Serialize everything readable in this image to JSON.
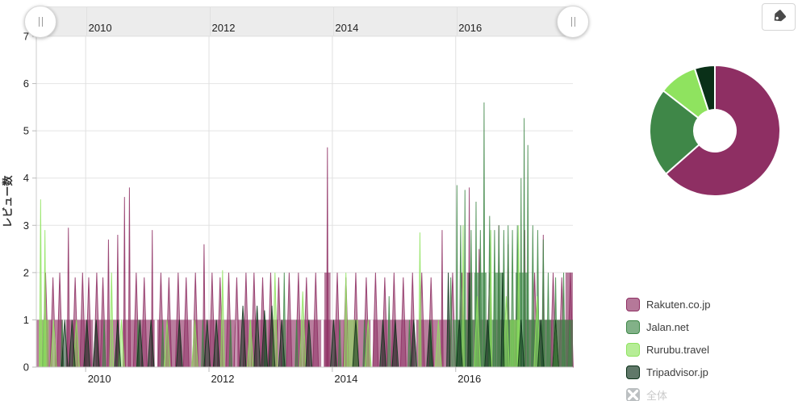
{
  "scrollbar": {
    "grip_glyph": "||"
  },
  "toolbar": {
    "tag_button": "tag-icon"
  },
  "palette": {
    "rakuten": "#8e2f63",
    "jalan": "#3f8748",
    "rurubu": "#8fe35f",
    "tripadvisor": "#0a3018",
    "disabled_gray": "#bcc0c2"
  },
  "legend": {
    "items": [
      {
        "label": "Rakuten.co.jp",
        "color": "#8e2f63"
      },
      {
        "label": "Jalan.net",
        "color": "#3f8748"
      },
      {
        "label": "Rurubu.travel",
        "color": "#8fe35f"
      },
      {
        "label": "Tripadvisor.jp",
        "color": "#0a3018"
      }
    ],
    "disabled_item": {
      "label": "全体"
    }
  },
  "chart_data": [
    {
      "type": "area",
      "title": "",
      "xlabel": "",
      "ylabel": "レビュー数",
      "xlim": [
        2009.2,
        2017.9
      ],
      "ylim": [
        0,
        7
      ],
      "y_ticks": [
        0,
        1,
        2,
        3,
        4,
        5,
        6,
        7
      ],
      "x_ticks": [
        2010,
        2012,
        2014,
        2016
      ],
      "grid": true,
      "legend_position": "right-bottom",
      "series": [
        {
          "name": "Rakuten.co.jp",
          "color": "#8e2f63",
          "spike_halfwidth": 0.045,
          "plateaus": [
            [
              2009.2,
              2009.46,
              1
            ],
            [
              2009.5,
              2009.63,
              1
            ],
            [
              2009.68,
              2010.12,
              1
            ],
            [
              2010.16,
              2010.55,
              1
            ],
            [
              2010.6,
              2011.12,
              1
            ],
            [
              2011.16,
              2011.72,
              1
            ],
            [
              2011.76,
              2012.42,
              1
            ],
            [
              2012.46,
              2013.12,
              1
            ],
            [
              2013.16,
              2013.82,
              1
            ],
            [
              2013.86,
              2014.62,
              1
            ],
            [
              2014.66,
              2015.32,
              1
            ],
            [
              2015.36,
              2015.92,
              1
            ],
            [
              2016.0,
              2016.52,
              1
            ],
            [
              2016.6,
              2017.02,
              1
            ],
            [
              2017.1,
              2017.9,
              1
            ],
            [
              2013.87,
              2013.97,
              2
            ],
            [
              2016.18,
              2016.27,
              2
            ],
            [
              2017.78,
              2017.9,
              2
            ]
          ],
          "spikes": [
            [
              2009.35,
              2.0
            ],
            [
              2009.47,
              1.9
            ],
            [
              2009.58,
              2.0
            ],
            [
              2009.72,
              2.95,
              0.02
            ],
            [
              2009.83,
              1.9
            ],
            [
              2009.95,
              2.0
            ],
            [
              2010.05,
              1.9
            ],
            [
              2010.18,
              2.0
            ],
            [
              2010.28,
              1.9
            ],
            [
              2010.37,
              2.7,
              0.02
            ],
            [
              2010.52,
              2.8,
              0.02
            ],
            [
              2010.63,
              3.6,
              0.015
            ],
            [
              2010.71,
              3.8,
              0.015
            ],
            [
              2010.82,
              2.0
            ],
            [
              2010.95,
              1.9
            ],
            [
              2011.08,
              2.9,
              0.015
            ],
            [
              2011.22,
              2.0
            ],
            [
              2011.35,
              1.9
            ],
            [
              2011.5,
              2.0
            ],
            [
              2011.63,
              1.9
            ],
            [
              2011.78,
              2.0
            ],
            [
              2011.92,
              2.6,
              0.02
            ],
            [
              2012.05,
              2.0
            ],
            [
              2012.18,
              1.9
            ],
            [
              2012.32,
              2.0
            ],
            [
              2012.45,
              1.9
            ],
            [
              2012.6,
              2.0
            ],
            [
              2012.73,
              2.0
            ],
            [
              2012.87,
              1.9
            ],
            [
              2013.0,
              2.0
            ],
            [
              2013.13,
              1.9
            ],
            [
              2013.3,
              2.0
            ],
            [
              2013.45,
              2.0
            ],
            [
              2013.58,
              1.9
            ],
            [
              2013.73,
              2.0
            ],
            [
              2013.92,
              4.65,
              0.012
            ],
            [
              2014.08,
              2.0
            ],
            [
              2014.22,
              1.9
            ],
            [
              2014.38,
              2.0
            ],
            [
              2014.55,
              1.9
            ],
            [
              2014.7,
              2.0
            ],
            [
              2014.85,
              1.9
            ],
            [
              2015.0,
              2.0
            ],
            [
              2015.15,
              1.9
            ],
            [
              2015.3,
              2.0
            ],
            [
              2015.45,
              2.0
            ],
            [
              2015.6,
              1.9
            ],
            [
              2015.78,
              2.9,
              0.015
            ],
            [
              2015.95,
              2.0
            ],
            [
              2016.1,
              2.0
            ],
            [
              2016.22,
              3.8,
              0.012
            ],
            [
              2016.38,
              2.5,
              0.02
            ],
            [
              2016.55,
              2.0
            ],
            [
              2016.7,
              3.0,
              0.015
            ],
            [
              2016.85,
              2.6,
              0.02
            ],
            [
              2017.0,
              2.0
            ],
            [
              2017.12,
              2.9,
              0.015
            ],
            [
              2017.28,
              2.0
            ],
            [
              2017.42,
              2.8,
              0.012
            ],
            [
              2017.58,
              2.0
            ],
            [
              2017.72,
              1.9
            ],
            [
              2017.86,
              2.0
            ]
          ]
        },
        {
          "name": "Jalan.net",
          "color": "#3f8748",
          "spike_halfwidth": 0.022,
          "plateaus": [
            [
              2015.95,
              2016.3,
              1
            ],
            [
              2016.3,
              2016.5,
              2
            ],
            [
              2016.5,
              2016.62,
              1
            ],
            [
              2016.62,
              2016.78,
              2
            ],
            [
              2016.78,
              2016.97,
              1
            ],
            [
              2016.97,
              2017.18,
              2
            ],
            [
              2017.18,
              2017.55,
              1
            ],
            [
              2017.58,
              2017.9,
              1
            ]
          ],
          "spikes": [
            [
              2009.32,
              1.0
            ],
            [
              2009.62,
              1.0
            ],
            [
              2010.3,
              1.0
            ],
            [
              2010.85,
              1.0
            ],
            [
              2011.25,
              1.0
            ],
            [
              2011.9,
              1.0
            ],
            [
              2012.35,
              1.0
            ],
            [
              2012.92,
              1.0
            ],
            [
              2013.22,
              2.0
            ],
            [
              2013.42,
              1.0
            ],
            [
              2014.12,
              1.0
            ],
            [
              2014.52,
              1.0
            ],
            [
              2014.92,
              1.5
            ],
            [
              2015.25,
              1.0
            ],
            [
              2015.6,
              1.0
            ],
            [
              2015.92,
              1.9
            ],
            [
              2016.02,
              3.85,
              0.013
            ],
            [
              2016.08,
              3.0
            ],
            [
              2016.15,
              3.75,
              0.013
            ],
            [
              2016.25,
              2.9
            ],
            [
              2016.33,
              3.5,
              0.015
            ],
            [
              2016.4,
              2.9
            ],
            [
              2016.46,
              5.6,
              0.012
            ],
            [
              2016.55,
              3.2
            ],
            [
              2016.63,
              2.9
            ],
            [
              2016.7,
              3.0
            ],
            [
              2016.78,
              2.9
            ],
            [
              2016.85,
              3.0
            ],
            [
              2016.92,
              2.9
            ],
            [
              2017.0,
              3.0
            ],
            [
              2017.06,
              4.0,
              0.013
            ],
            [
              2017.11,
              5.27,
              0.012
            ],
            [
              2017.17,
              4.7,
              0.013
            ],
            [
              2017.25,
              3.0
            ],
            [
              2017.33,
              2.9
            ],
            [
              2017.42,
              2.7
            ],
            [
              2017.5,
              2.0
            ],
            [
              2017.62,
              1.9
            ],
            [
              2017.75,
              2.0
            ],
            [
              2017.85,
              1.0
            ]
          ]
        },
        {
          "name": "Rurubu.travel",
          "color": "#8fe35f",
          "spike_halfwidth": 0.05,
          "plateaus": [
            [
              2009.24,
              2009.4,
              1
            ],
            [
              2014.25,
              2014.42,
              1
            ],
            [
              2016.88,
              2017.04,
              1
            ]
          ],
          "spikes": [
            [
              2009.27,
              3.55,
              0.018
            ],
            [
              2009.34,
              2.9,
              0.018
            ],
            [
              2009.48,
              1.0
            ],
            [
              2009.85,
              1.0
            ],
            [
              2010.42,
              2.0,
              0.03
            ],
            [
              2010.58,
              1.0
            ],
            [
              2011.32,
              1.0
            ],
            [
              2011.77,
              1.0
            ],
            [
              2012.22,
              2.05,
              0.03
            ],
            [
              2012.67,
              1.0
            ],
            [
              2013.07,
              2.0,
              0.04
            ],
            [
              2013.52,
              1.6
            ],
            [
              2014.22,
              2.0,
              0.03
            ],
            [
              2014.58,
              1.0
            ],
            [
              2015.42,
              2.85,
              0.02
            ],
            [
              2015.72,
              1.0
            ],
            [
              2016.12,
              3.0,
              0.018
            ],
            [
              2016.35,
              1.5
            ],
            [
              2016.57,
              2.9,
              0.018
            ],
            [
              2016.82,
              1.5
            ],
            [
              2017.02,
              3.0,
              0.018
            ],
            [
              2017.32,
              1.5
            ],
            [
              2017.62,
              1.0
            ]
          ]
        },
        {
          "name": "Tripadvisor.jp",
          "color": "#0a3018",
          "spike_halfwidth": 0.05,
          "plateaus": [],
          "spikes": [
            [
              2009.66,
              1.0
            ],
            [
              2009.78,
              1.0
            ],
            [
              2010.02,
              1.0
            ],
            [
              2010.17,
              1.0
            ],
            [
              2010.52,
              1.0
            ],
            [
              2010.88,
              1.0
            ],
            [
              2011.06,
              1.0
            ],
            [
              2011.52,
              1.0
            ],
            [
              2011.97,
              1.0
            ],
            [
              2012.12,
              1.0
            ],
            [
              2012.55,
              1.3
            ],
            [
              2012.78,
              1.3
            ],
            [
              2012.9,
              1.2
            ],
            [
              2013.02,
              1.3
            ],
            [
              2013.18,
              1.0
            ],
            [
              2013.62,
              1.0
            ],
            [
              2014.02,
              1.0
            ],
            [
              2014.38,
              1.0
            ],
            [
              2014.82,
              1.0
            ],
            [
              2015.02,
              1.0
            ],
            [
              2015.32,
              1.0
            ],
            [
              2015.58,
              1.0
            ],
            [
              2015.88,
              2.0,
              0.025
            ],
            [
              2016.06,
              1.0
            ],
            [
              2016.22,
              2.0,
              0.025
            ],
            [
              2016.52,
              1.0
            ],
            [
              2016.76,
              2.0,
              0.025
            ],
            [
              2017.06,
              1.0
            ],
            [
              2017.38,
              1.0
            ],
            [
              2017.62,
              1.0
            ]
          ]
        }
      ]
    },
    {
      "type": "pie",
      "donut": true,
      "labels": [
        "Rakuten.co.jp",
        "Jalan.net",
        "Rurubu.travel",
        "Tripadvisor.jp"
      ],
      "values": [
        63.5,
        22,
        9.5,
        5
      ],
      "colors": [
        "#8e2f63",
        "#3f8748",
        "#8fe35f",
        "#0a3018"
      ],
      "start_angle_deg": 0,
      "direction": "clockwise"
    }
  ]
}
